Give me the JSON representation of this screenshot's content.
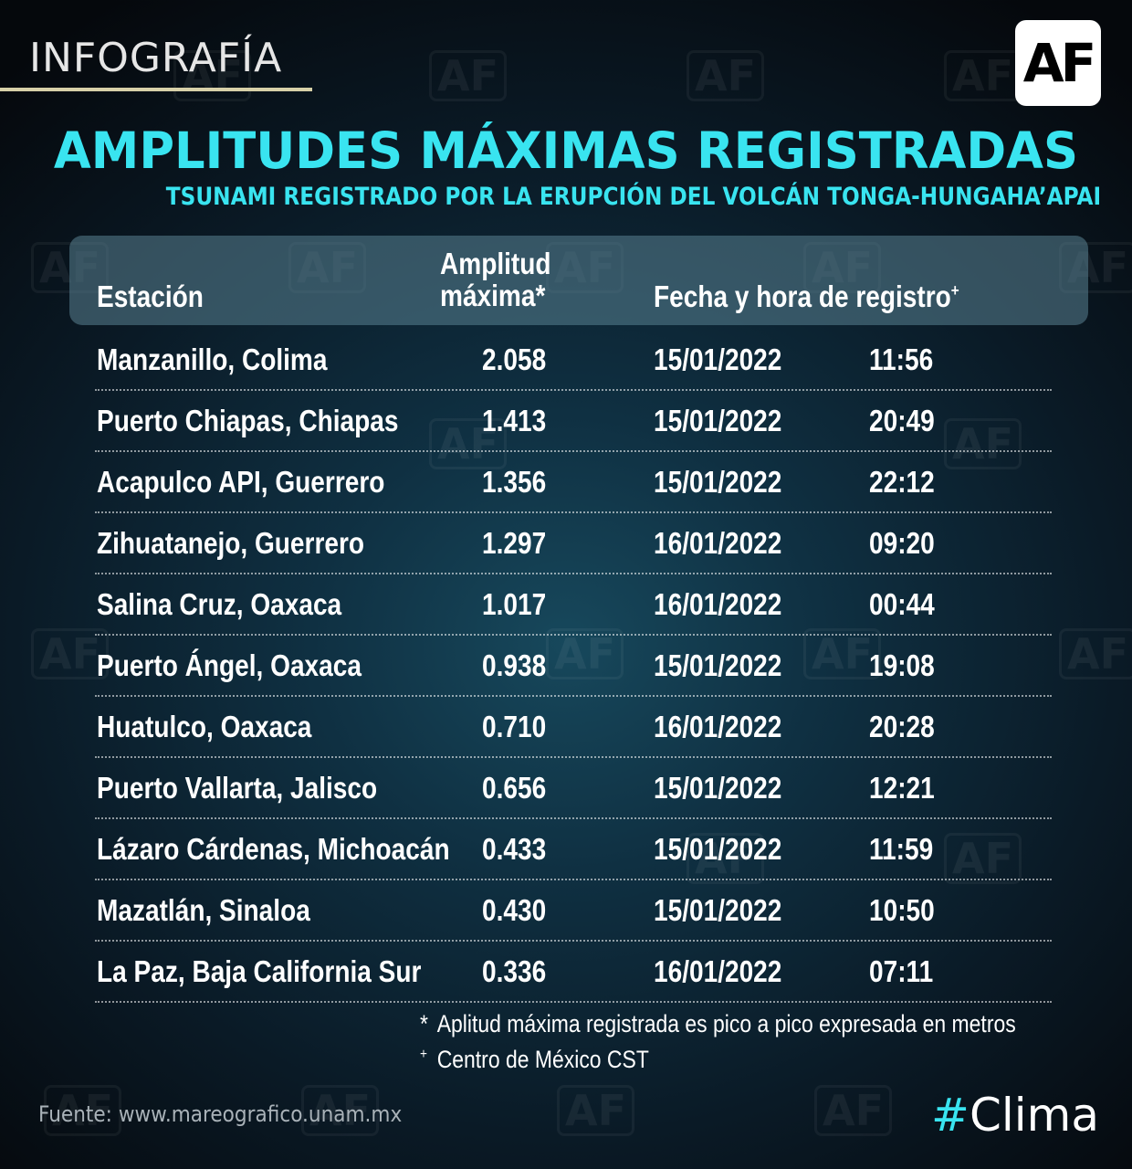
{
  "header": {
    "label": "INFOGRAFÍA",
    "logo": "AF"
  },
  "title": "AMPLITUDES MÁXIMAS REGISTRADAS",
  "subtitle": "TSUNAMI REGISTRADO POR LA ERUPCIÓN DEL VOLCÁN TONGA-HUNGAHA’APAI",
  "watermark": "AF",
  "table": {
    "headers": {
      "station": "Estación",
      "amplitude_line1": "Amplitud",
      "amplitude_line2": "máxima*",
      "datetime": "Fecha y hora de registro",
      "datetime_mark": "+"
    },
    "rows": [
      {
        "station": "Manzanillo, Colima",
        "amplitude": "2.058",
        "date": "15/01/2022",
        "time": "11:56"
      },
      {
        "station": "Puerto Chiapas, Chiapas",
        "amplitude": "1.413",
        "date": "15/01/2022",
        "time": "20:49"
      },
      {
        "station": "Acapulco API, Guerrero",
        "amplitude": "1.356",
        "date": "15/01/2022",
        "time": "22:12"
      },
      {
        "station": "Zihuatanejo, Guerrero",
        "amplitude": "1.297",
        "date": "16/01/2022",
        "time": "09:20"
      },
      {
        "station": "Salina Cruz, Oaxaca",
        "amplitude": "1.017",
        "date": "16/01/2022",
        "time": "00:44"
      },
      {
        "station": "Puerto Ángel, Oaxaca",
        "amplitude": "0.938",
        "date": "15/01/2022",
        "time": "19:08"
      },
      {
        "station": "Huatulco, Oaxaca",
        "amplitude": "0.710",
        "date": "16/01/2022",
        "time": "20:28"
      },
      {
        "station": "Puerto Vallarta, Jalisco",
        "amplitude": "0.656",
        "date": "15/01/2022",
        "time": "12:21"
      },
      {
        "station": "Lázaro Cárdenas, Michoacán",
        "amplitude": "0.433",
        "date": "15/01/2022",
        "time": "11:59"
      },
      {
        "station": "Mazatlán, Sinaloa",
        "amplitude": "0.430",
        "date": "15/01/2022",
        "time": "10:50"
      },
      {
        "station": "La Paz, Baja California Sur",
        "amplitude": "0.336",
        "date": "16/01/2022",
        "time": "07:11"
      }
    ]
  },
  "footnotes": [
    {
      "symbol": "*",
      "text": "Aplitud máxima registrada es pico a pico expresada  en metros"
    },
    {
      "symbol": "+",
      "text": "Centro de México CST"
    }
  ],
  "source": "Fuente: www.mareografico.unam.mx",
  "hashtag": {
    "symbol": "#",
    "text": "Clima"
  },
  "colors": {
    "accent": "#39e4f0",
    "background": "#0f3042",
    "header_bar": "#5a8291"
  }
}
